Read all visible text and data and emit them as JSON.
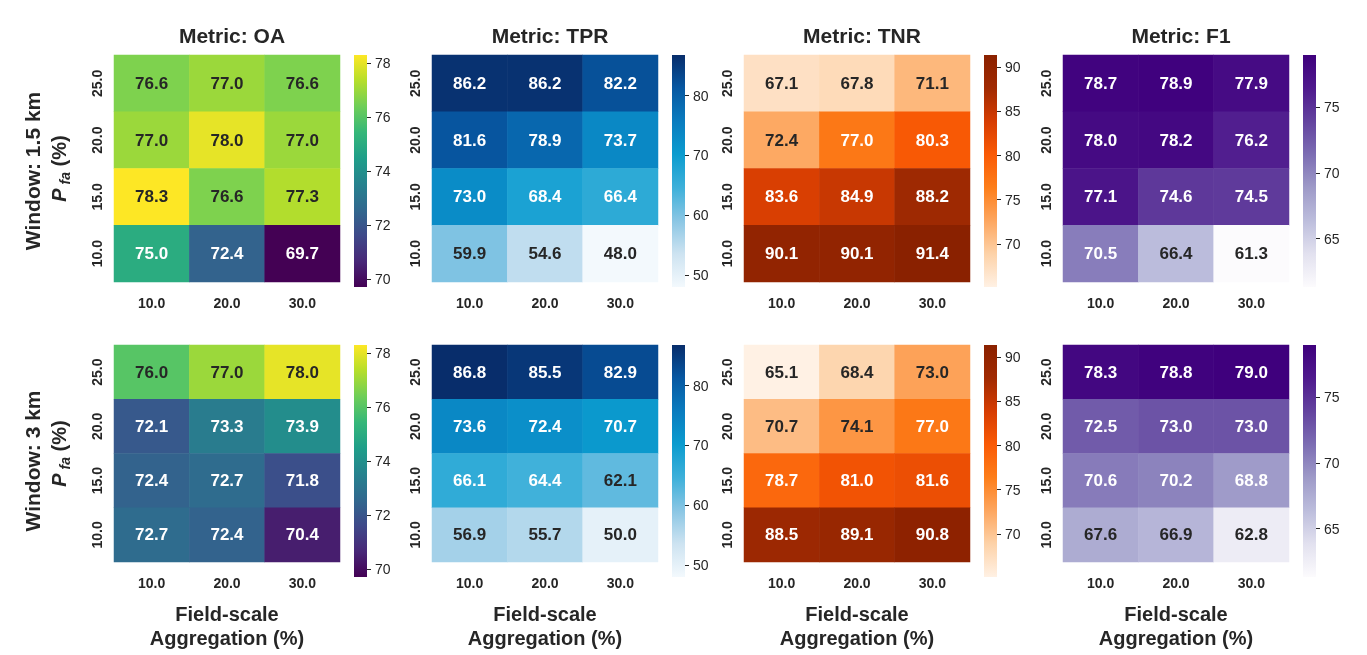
{
  "chart_data": [
    {
      "type": "heatmap",
      "title": "Metric: OA",
      "ylabel": "P$_{fa}$ (%)",
      "annotations": [
        "Window: 1.5 km"
      ],
      "categories": [
        "10.0",
        "20.0",
        "30.0"
      ],
      "y_categories": [
        "25.0",
        "20.0",
        "15.0",
        "10.0"
      ],
      "cells": [
        [
          76.6,
          77.0,
          76.6
        ],
        [
          77.0,
          78.0,
          77.0
        ],
        [
          78.3,
          76.6,
          77.3
        ],
        [
          75.0,
          72.4,
          69.7
        ]
      ],
      "cell_labels": [
        [
          "76.6",
          "77.0",
          "76.6"
        ],
        [
          "77.0",
          "78.0",
          "77.0"
        ],
        [
          "78.3",
          "76.6",
          "77.3"
        ],
        [
          "75.0",
          "72.4",
          "69.7"
        ]
      ],
      "clim": [
        69.7,
        78.3
      ],
      "cticks": [
        70,
        72,
        74,
        76,
        78
      ],
      "data_labels": true,
      "colors": [
        "#440154",
        "#482878",
        "#3e4989",
        "#31688e",
        "#26828e",
        "#1f9e89",
        "#35b779",
        "#6ece58",
        "#b5de2b",
        "#fde725"
      ]
    },
    {
      "type": "heatmap",
      "title": "Metric: TPR",
      "categories": [
        "10.0",
        "20.0",
        "30.0"
      ],
      "y_categories": [
        "25.0",
        "20.0",
        "15.0",
        "10.0"
      ],
      "cells": [
        [
          86.2,
          86.2,
          82.2
        ],
        [
          81.6,
          78.9,
          73.7
        ],
        [
          73.0,
          68.4,
          66.4
        ],
        [
          59.9,
          54.6,
          48.0
        ]
      ],
      "cell_labels": [
        [
          "86.2",
          "86.2",
          "82.2"
        ],
        [
          "81.6",
          "78.9",
          "73.7"
        ],
        [
          "73.0",
          "68.4",
          "66.4"
        ],
        [
          "59.9",
          "54.6",
          "48.0"
        ]
      ],
      "clim": [
        48.0,
        86.8
      ],
      "cticks": [
        50,
        60,
        70,
        80
      ],
      "data_labels": true,
      "colors": [
        "#f3f9fd",
        "#cde3f1",
        "#8ac6e4",
        "#3db0da",
        "#0b9ccf",
        "#0a7cbf",
        "#0758a2",
        "#082d6b"
      ]
    },
    {
      "type": "heatmap",
      "title": "Metric: TNR",
      "categories": [
        "10.0",
        "20.0",
        "30.0"
      ],
      "y_categories": [
        "25.0",
        "20.0",
        "15.0",
        "10.0"
      ],
      "cells": [
        [
          67.1,
          67.8,
          71.1
        ],
        [
          72.4,
          77.0,
          80.3
        ],
        [
          83.6,
          84.9,
          88.2
        ],
        [
          90.1,
          90.1,
          91.4
        ]
      ],
      "cell_labels": [
        [
          "67.1",
          "67.8",
          "71.1"
        ],
        [
          "72.4",
          "77.0",
          "80.3"
        ],
        [
          "83.6",
          "84.9",
          "88.2"
        ],
        [
          "90.1",
          "90.1",
          "91.4"
        ]
      ],
      "clim": [
        65.1,
        91.4
      ],
      "cticks": [
        70,
        75,
        80,
        85,
        90
      ],
      "data_labels": true,
      "colors": [
        "#fff1e4",
        "#fdd2a8",
        "#fda65f",
        "#fd7e1a",
        "#fa5a05",
        "#d63d02",
        "#a12a02",
        "#8a2100"
      ]
    },
    {
      "type": "heatmap",
      "title": "Metric: F1",
      "categories": [
        "10.0",
        "20.0",
        "30.0"
      ],
      "y_categories": [
        "25.0",
        "20.0",
        "15.0",
        "10.0"
      ],
      "cells": [
        [
          78.7,
          78.9,
          77.9
        ],
        [
          78.0,
          78.2,
          76.2
        ],
        [
          77.1,
          74.6,
          74.5
        ],
        [
          70.5,
          66.4,
          61.3
        ]
      ],
      "cell_labels": [
        [
          "78.7",
          "78.9",
          "77.9"
        ],
        [
          "78.0",
          "78.2",
          "76.2"
        ],
        [
          "77.1",
          "74.6",
          "74.5"
        ],
        [
          "70.5",
          "66.4",
          "61.3"
        ]
      ],
      "clim": [
        61.3,
        79.0
      ],
      "cticks": [
        65,
        70,
        75
      ],
      "data_labels": true,
      "colors": [
        "#fcfbfd",
        "#e2e1ef",
        "#bcbddc",
        "#9e9ac8",
        "#7c6db3",
        "#63439f",
        "#4f1a8d",
        "#3f007d"
      ]
    },
    {
      "type": "heatmap",
      "xlabel": "Field-scale Aggregation (%)",
      "ylabel": "P$_{fa}$ (%)",
      "annotations": [
        "Window: 3 km"
      ],
      "categories": [
        "10.0",
        "20.0",
        "30.0"
      ],
      "y_categories": [
        "25.0",
        "20.0",
        "15.0",
        "10.0"
      ],
      "cells": [
        [
          76.0,
          77.0,
          78.0
        ],
        [
          72.1,
          73.3,
          73.9
        ],
        [
          72.4,
          72.7,
          71.8
        ],
        [
          72.7,
          72.4,
          70.4
        ]
      ],
      "cell_labels": [
        [
          "76.0",
          "77.0",
          "78.0"
        ],
        [
          "72.1",
          "73.3",
          "73.9"
        ],
        [
          "72.4",
          "72.7",
          "71.8"
        ],
        [
          "72.7",
          "72.4",
          "70.4"
        ]
      ],
      "clim": [
        69.7,
        78.3
      ],
      "cticks": [
        70,
        72,
        74,
        76,
        78
      ],
      "data_labels": true,
      "colors": [
        "#440154",
        "#482878",
        "#3e4989",
        "#31688e",
        "#26828e",
        "#1f9e89",
        "#35b779",
        "#6ece58",
        "#b5de2b",
        "#fde725"
      ]
    },
    {
      "type": "heatmap",
      "xlabel": "Field-scale Aggregation (%)",
      "categories": [
        "10.0",
        "20.0",
        "30.0"
      ],
      "y_categories": [
        "25.0",
        "20.0",
        "15.0",
        "10.0"
      ],
      "cells": [
        [
          86.8,
          85.5,
          82.9
        ],
        [
          73.6,
          72.4,
          70.7
        ],
        [
          66.1,
          64.4,
          62.1
        ],
        [
          56.9,
          55.7,
          50.0
        ]
      ],
      "cell_labels": [
        [
          "86.8",
          "85.5",
          "82.9"
        ],
        [
          "73.6",
          "72.4",
          "70.7"
        ],
        [
          "66.1",
          "64.4",
          "62.1"
        ],
        [
          "56.9",
          "55.7",
          "50.0"
        ]
      ],
      "clim": [
        48.0,
        86.8
      ],
      "cticks": [
        50,
        60,
        70,
        80
      ],
      "data_labels": true,
      "colors": [
        "#f3f9fd",
        "#cde3f1",
        "#8ac6e4",
        "#3db0da",
        "#0b9ccf",
        "#0a7cbf",
        "#0758a2",
        "#082d6b"
      ]
    },
    {
      "type": "heatmap",
      "xlabel": "Field-scale Aggregation (%)",
      "categories": [
        "10.0",
        "20.0",
        "30.0"
      ],
      "y_categories": [
        "25.0",
        "20.0",
        "15.0",
        "10.0"
      ],
      "cells": [
        [
          65.1,
          68.4,
          73.0
        ],
        [
          70.7,
          74.1,
          77.0
        ],
        [
          78.7,
          81.0,
          81.6
        ],
        [
          88.5,
          89.1,
          90.8
        ]
      ],
      "cell_labels": [
        [
          "65.1",
          "68.4",
          "73.0"
        ],
        [
          "70.7",
          "74.1",
          "77.0"
        ],
        [
          "78.7",
          "81.0",
          "81.6"
        ],
        [
          "88.5",
          "89.1",
          "90.8"
        ]
      ],
      "clim": [
        65.1,
        91.4
      ],
      "cticks": [
        70,
        75,
        80,
        85,
        90
      ],
      "data_labels": true,
      "colors": [
        "#fff1e4",
        "#fdd2a8",
        "#fda65f",
        "#fd7e1a",
        "#fa5a05",
        "#d63d02",
        "#a12a02",
        "#8a2100"
      ]
    },
    {
      "type": "heatmap",
      "xlabel": "Field-scale Aggregation (%)",
      "categories": [
        "10.0",
        "20.0",
        "30.0"
      ],
      "y_categories": [
        "25.0",
        "20.0",
        "15.0",
        "10.0"
      ],
      "cells": [
        [
          78.3,
          78.8,
          79.0
        ],
        [
          72.5,
          73.0,
          73.0
        ],
        [
          70.6,
          70.2,
          68.8
        ],
        [
          67.6,
          66.9,
          62.8
        ]
      ],
      "cell_labels": [
        [
          "78.3",
          "78.8",
          "79.0"
        ],
        [
          "72.5",
          "73.0",
          "73.0"
        ],
        [
          "70.6",
          "70.2",
          "68.8"
        ],
        [
          "67.6",
          "66.9",
          "62.8"
        ]
      ],
      "clim": [
        61.3,
        79.0
      ],
      "cticks": [
        65,
        70,
        75
      ],
      "data_labels": true,
      "colors": [
        "#fcfbfd",
        "#e2e1ef",
        "#bcbddc",
        "#9e9ac8",
        "#7c6db3",
        "#63439f",
        "#4f1a8d",
        "#3f007d"
      ]
    }
  ]
}
